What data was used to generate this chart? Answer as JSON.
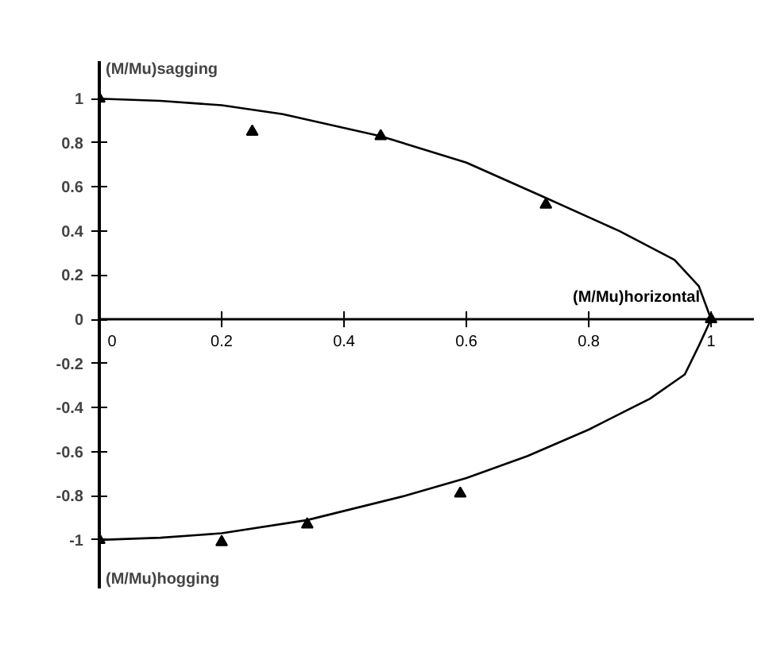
{
  "chart_data": {
    "type": "scatter",
    "xlabel": "(M/Mu)horizontal",
    "ylabel": "(M/Mu)sagging",
    "annotations": [
      "(M/Mu)hogging"
    ],
    "xlim": [
      0,
      1.07
    ],
    "ylim": [
      -1.22,
      1.17
    ],
    "xticks": [
      0,
      0.2,
      0.4,
      0.6,
      0.8,
      1
    ],
    "yticks": [
      -1,
      -0.8,
      -0.6,
      -0.4,
      -0.2,
      0,
      0.2,
      0.4,
      0.6,
      0.8,
      1
    ],
    "grid": false,
    "series": [
      {
        "type": "line",
        "color": "#000000",
        "marker": "none",
        "x": [
          0,
          0.1,
          0.2,
          0.3,
          0.46,
          0.6,
          0.73,
          0.85,
          0.94,
          0.98,
          1,
          0.98,
          0.957,
          0.9,
          0.8,
          0.7,
          0.6,
          0.5,
          0.34,
          0.2,
          0.1,
          0
        ],
        "values": [
          1,
          0.99,
          0.97,
          0.93,
          0.83,
          0.71,
          0.55,
          0.4,
          0.27,
          0.15,
          0,
          -0.12,
          -0.25,
          -0.36,
          -0.5,
          -0.62,
          -0.72,
          -0.8,
          -0.91,
          -0.97,
          -0.99,
          -1
        ]
      },
      {
        "color": "#000000",
        "marker": "triangle",
        "x": [
          0,
          0.25,
          0.46,
          0.73,
          1,
          0.2,
          0.34,
          0.59,
          0
        ],
        "values": [
          1,
          0.85,
          0.83,
          0.52,
          0,
          -1.01,
          -0.93,
          -0.79,
          -1
        ]
      }
    ]
  }
}
